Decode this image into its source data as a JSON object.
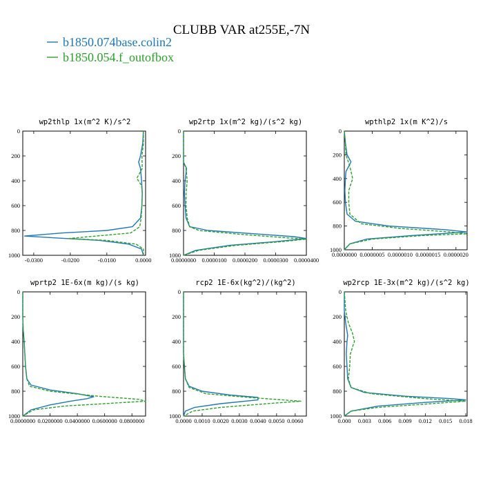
{
  "title": "CLUBB VAR at255E,-7N",
  "legend": [
    {
      "label": "b1850.074base.colin2",
      "color": "#1f77b4",
      "dash": "solid"
    },
    {
      "label": "b1850.054.f_outofbox",
      "color": "#2ca02c",
      "dash": "dashed"
    }
  ],
  "chart_data": [
    {
      "type": "line",
      "title": "wp2thlp  1x(m^2 K)/s^2",
      "xlim": [
        -0.033,
        0.0006
      ],
      "ylim": [
        1000,
        0
      ],
      "y_inverted": true,
      "xticks": [
        -0.03,
        -0.02,
        -0.01,
        0.0
      ],
      "xticklabels": [
        "-0.0300",
        "-0.0200",
        "-0.0100",
        "0.0000"
      ],
      "yticks": [
        0,
        200,
        400,
        600,
        800,
        1000
      ],
      "yticklabels": [
        "0",
        "200",
        "400",
        "600",
        "800",
        "1000"
      ],
      "series": [
        {
          "points": [
            [
              0.0,
              0
            ],
            [
              -0.0002,
              100
            ],
            [
              -0.0008,
              200
            ],
            [
              -0.0013,
              250
            ],
            [
              -0.0008,
              300
            ],
            [
              -0.0005,
              400
            ],
            [
              -0.0003,
              500
            ],
            [
              -0.0004,
              600
            ],
            [
              -0.0008,
              700
            ],
            [
              -0.003,
              770
            ],
            [
              -0.01,
              800
            ],
            [
              -0.022,
              820
            ],
            [
              -0.0325,
              845
            ],
            [
              -0.024,
              860
            ],
            [
              -0.012,
              880
            ],
            [
              -0.004,
              910
            ],
            [
              -0.0005,
              950
            ],
            [
              0.0,
              1000
            ]
          ]
        },
        {
          "points": [
            [
              0.0,
              0
            ],
            [
              0.0,
              100
            ],
            [
              -0.0004,
              200
            ],
            [
              -0.0003,
              300
            ],
            [
              -0.0018,
              380
            ],
            [
              -0.0005,
              440
            ],
            [
              -0.0003,
              500
            ],
            [
              -0.0004,
              600
            ],
            [
              -0.0006,
              700
            ],
            [
              -0.001,
              770
            ],
            [
              -0.0035,
              820
            ],
            [
              -0.0205,
              865
            ],
            [
              -0.01,
              880
            ],
            [
              -0.002,
              910
            ],
            [
              0.0,
              950
            ],
            [
              0.0,
              1000
            ]
          ]
        }
      ]
    },
    {
      "type": "line",
      "title": "wp2rtp  1x(m^2 kg)/(s^2 kg)",
      "xlim": [
        0.0,
        4e-05
      ],
      "ylim": [
        1000,
        0
      ],
      "y_inverted": true,
      "xticks": [
        0.0,
        1e-05,
        2e-05,
        3e-05,
        4e-05
      ],
      "xticklabels": [
        "0.0000000",
        "0.0000100",
        "0.0000200",
        "0.0000300",
        "0.0000400"
      ],
      "yticks": [
        0,
        200,
        400,
        600,
        800,
        1000
      ],
      "yticklabels": [
        "0",
        "200",
        "400",
        "600",
        "800",
        "1000"
      ],
      "series": [
        {
          "points": [
            [
              0.0,
              0
            ],
            [
              0.0,
              250
            ],
            [
              1e-06,
              300
            ],
            [
              5e-07,
              400
            ],
            [
              3e-07,
              500
            ],
            [
              5e-07,
              600
            ],
            [
              8e-07,
              700
            ],
            [
              2e-06,
              770
            ],
            [
              8e-06,
              800
            ],
            [
              2.5e-05,
              830
            ],
            [
              3.6e-05,
              850
            ],
            [
              4e-05,
              865
            ],
            [
              3e-05,
              890
            ],
            [
              1.5e-05,
              920
            ],
            [
              4e-06,
              960
            ],
            [
              0.0,
              1000
            ]
          ]
        },
        {
          "points": [
            [
              0.0,
              0
            ],
            [
              0.0,
              250
            ],
            [
              8e-07,
              300
            ],
            [
              1.2e-06,
              400
            ],
            [
              8e-07,
              500
            ],
            [
              8e-07,
              600
            ],
            [
              1.2e-06,
              700
            ],
            [
              2e-06,
              770
            ],
            [
              5e-06,
              800
            ],
            [
              1.8e-05,
              830
            ],
            [
              3.4e-05,
              860
            ],
            [
              4e-05,
              870
            ],
            [
              3.2e-05,
              890
            ],
            [
              1.7e-05,
              920
            ],
            [
              5e-06,
              960
            ],
            [
              0.0,
              1000
            ]
          ]
        }
      ]
    },
    {
      "type": "line",
      "title": "wpthlp2  1x(m K^2)/s",
      "xlim": [
        0.0,
        2.2e-06
      ],
      "ylim": [
        1000,
        0
      ],
      "y_inverted": true,
      "xticks": [
        0.0,
        5e-07,
        1e-06,
        1.5e-06,
        2e-06
      ],
      "xticklabels": [
        "0.0000000",
        "0.0000005",
        "0.0000010",
        "0.0000015",
        "0.0000020"
      ],
      "yticks": [
        0,
        200,
        400,
        600,
        800,
        1000
      ],
      "yticklabels": [
        "0",
        "200",
        "400",
        "600",
        "800",
        "1000"
      ],
      "series": [
        {
          "points": [
            [
              0.0,
              0
            ],
            [
              2e-08,
              100
            ],
            [
              5e-08,
              200
            ],
            [
              1.2e-07,
              260
            ],
            [
              3e-08,
              340
            ],
            [
              2e-08,
              400
            ],
            [
              1e-08,
              500
            ],
            [
              2e-08,
              600
            ],
            [
              5e-08,
              700
            ],
            [
              2e-07,
              760
            ],
            [
              8e-07,
              800
            ],
            [
              1.8e-06,
              830
            ],
            [
              2.2e-06,
              850
            ],
            [
              1.2e-06,
              880
            ],
            [
              4e-07,
              910
            ],
            [
              1e-07,
              950
            ],
            [
              0.0,
              1000
            ]
          ]
        },
        {
          "points": [
            [
              0.0,
              0
            ],
            [
              2e-08,
              100
            ],
            [
              3e-08,
              200
            ],
            [
              1e-07,
              300
            ],
            [
              1.5e-07,
              400
            ],
            [
              8e-08,
              500
            ],
            [
              8e-08,
              600
            ],
            [
              1e-07,
              700
            ],
            [
              3e-07,
              780
            ],
            [
              1e-06,
              820
            ],
            [
              1.9e-06,
              850
            ],
            [
              2.2e-06,
              865
            ],
            [
              1.4e-06,
              880
            ],
            [
              5e-07,
              910
            ],
            [
              1e-07,
              950
            ],
            [
              0.0,
              1000
            ]
          ]
        }
      ]
    },
    {
      "type": "line",
      "title": "wprtp2  1E-6x(m kg)/(s kg)",
      "xlim": [
        0.0,
        0.09
      ],
      "ylim": [
        1000,
        0
      ],
      "y_inverted": true,
      "xticks": [
        0.0,
        0.02,
        0.04,
        0.06,
        0.08
      ],
      "xticklabels": [
        "0.0000000",
        "0.0200000",
        "0.0400000",
        "0.0600000",
        "0.0800000"
      ],
      "yticks": [
        0,
        200,
        400,
        600,
        800,
        1000
      ],
      "yticklabels": [
        "0",
        "200",
        "400",
        "600",
        "800",
        "1000"
      ],
      "series": [
        {
          "points": [
            [
              0.0,
              0
            ],
            [
              0.0,
              200
            ],
            [
              0.0003,
              300
            ],
            [
              0.001,
              400
            ],
            [
              0.0015,
              500
            ],
            [
              0.002,
              600
            ],
            [
              0.003,
              700
            ],
            [
              0.006,
              750
            ],
            [
              0.02,
              790
            ],
            [
              0.04,
              820
            ],
            [
              0.052,
              845
            ],
            [
              0.047,
              860
            ],
            [
              0.035,
              880
            ],
            [
              0.02,
              910
            ],
            [
              0.006,
              950
            ],
            [
              0.0,
              1000
            ]
          ]
        },
        {
          "points": [
            [
              0.0,
              0
            ],
            [
              0.0,
              200
            ],
            [
              0.0003,
              300
            ],
            [
              0.001,
              400
            ],
            [
              0.0015,
              500
            ],
            [
              0.002,
              600
            ],
            [
              0.003,
              700
            ],
            [
              0.005,
              760
            ],
            [
              0.02,
              800
            ],
            [
              0.055,
              840
            ],
            [
              0.085,
              865
            ],
            [
              0.09,
              880
            ],
            [
              0.06,
              900
            ],
            [
              0.03,
              920
            ],
            [
              0.008,
              950
            ],
            [
              0.0,
              1000
            ]
          ]
        }
      ]
    },
    {
      "type": "line",
      "title": "rcp2  1E-6x(kg^2)/(kg^2)",
      "xlim": [
        0.0,
        0.0066
      ],
      "ylim": [
        1000,
        0
      ],
      "y_inverted": true,
      "xticks": [
        0.0,
        0.001,
        0.002,
        0.003,
        0.004,
        0.005,
        0.006
      ],
      "xticklabels": [
        "0.0000",
        "0.0010",
        "0.0020",
        "0.0030",
        "0.0040",
        "0.0050",
        "0.0060"
      ],
      "yticks": [
        0,
        200,
        400,
        600,
        800,
        1000
      ],
      "yticklabels": [
        "0",
        "200",
        "400",
        "600",
        "800",
        "1000"
      ],
      "series": [
        {
          "points": [
            [
              0.0,
              0
            ],
            [
              0.0,
              500
            ],
            [
              5e-05,
              600
            ],
            [
              0.0001,
              700
            ],
            [
              0.0003,
              760
            ],
            [
              0.001,
              800
            ],
            [
              0.0025,
              830
            ],
            [
              0.004,
              850
            ],
            [
              0.004,
              870
            ],
            [
              0.002,
              900
            ],
            [
              0.0006,
              930
            ],
            [
              0.0001,
              960
            ],
            [
              0.0,
              1000
            ]
          ]
        },
        {
          "points": [
            [
              0.0,
              0
            ],
            [
              0.0,
              500
            ],
            [
              5e-05,
              600
            ],
            [
              0.0001,
              700
            ],
            [
              0.0003,
              770
            ],
            [
              0.0012,
              820
            ],
            [
              0.0035,
              850
            ],
            [
              0.0063,
              880
            ],
            [
              0.0045,
              900
            ],
            [
              0.002,
              930
            ],
            [
              0.0005,
              960
            ],
            [
              0.0,
              1000
            ]
          ]
        }
      ]
    },
    {
      "type": "line",
      "title": "wp2rcp  1E-3x(m^2 kg)/(s^2 kg)",
      "xlim": [
        0.0,
        0.0182
      ],
      "ylim": [
        1000,
        0
      ],
      "y_inverted": true,
      "xticks": [
        0.0,
        0.003,
        0.006,
        0.009,
        0.012,
        0.015,
        0.018
      ],
      "xticklabels": [
        "0.000",
        "0.003",
        "0.006",
        "0.009",
        "0.012",
        "0.015",
        "0.018"
      ],
      "yticks": [
        0,
        200,
        400,
        600,
        800,
        1000
      ],
      "yticklabels": [
        "0",
        "200",
        "400",
        "600",
        "800",
        "1000"
      ],
      "series": [
        {
          "points": [
            [
              0.0,
              0
            ],
            [
              0.0,
              150
            ],
            [
              0.0002,
              250
            ],
            [
              0.0005,
              350
            ],
            [
              0.0004,
              400
            ],
            [
              0.0003,
              500
            ],
            [
              0.0004,
              600
            ],
            [
              0.0005,
              700
            ],
            [
              0.001,
              770
            ],
            [
              0.003,
              810
            ],
            [
              0.009,
              840
            ],
            [
              0.016,
              860
            ],
            [
              0.018,
              870
            ],
            [
              0.012,
              890
            ],
            [
              0.005,
              920
            ],
            [
              0.001,
              960
            ],
            [
              0.0,
              1000
            ]
          ]
        },
        {
          "points": [
            [
              0.0,
              0
            ],
            [
              0.0002,
              150
            ],
            [
              0.0006,
              250
            ],
            [
              0.0012,
              330
            ],
            [
              0.0015,
              400
            ],
            [
              0.0013,
              430
            ],
            [
              0.0009,
              500
            ],
            [
              0.0008,
              600
            ],
            [
              0.0006,
              700
            ],
            [
              0.001,
              770
            ],
            [
              0.004,
              820
            ],
            [
              0.012,
              860
            ],
            [
              0.018,
              880
            ],
            [
              0.013,
              900
            ],
            [
              0.005,
              930
            ],
            [
              0.001,
              960
            ],
            [
              0.0,
              1000
            ]
          ]
        }
      ]
    }
  ]
}
